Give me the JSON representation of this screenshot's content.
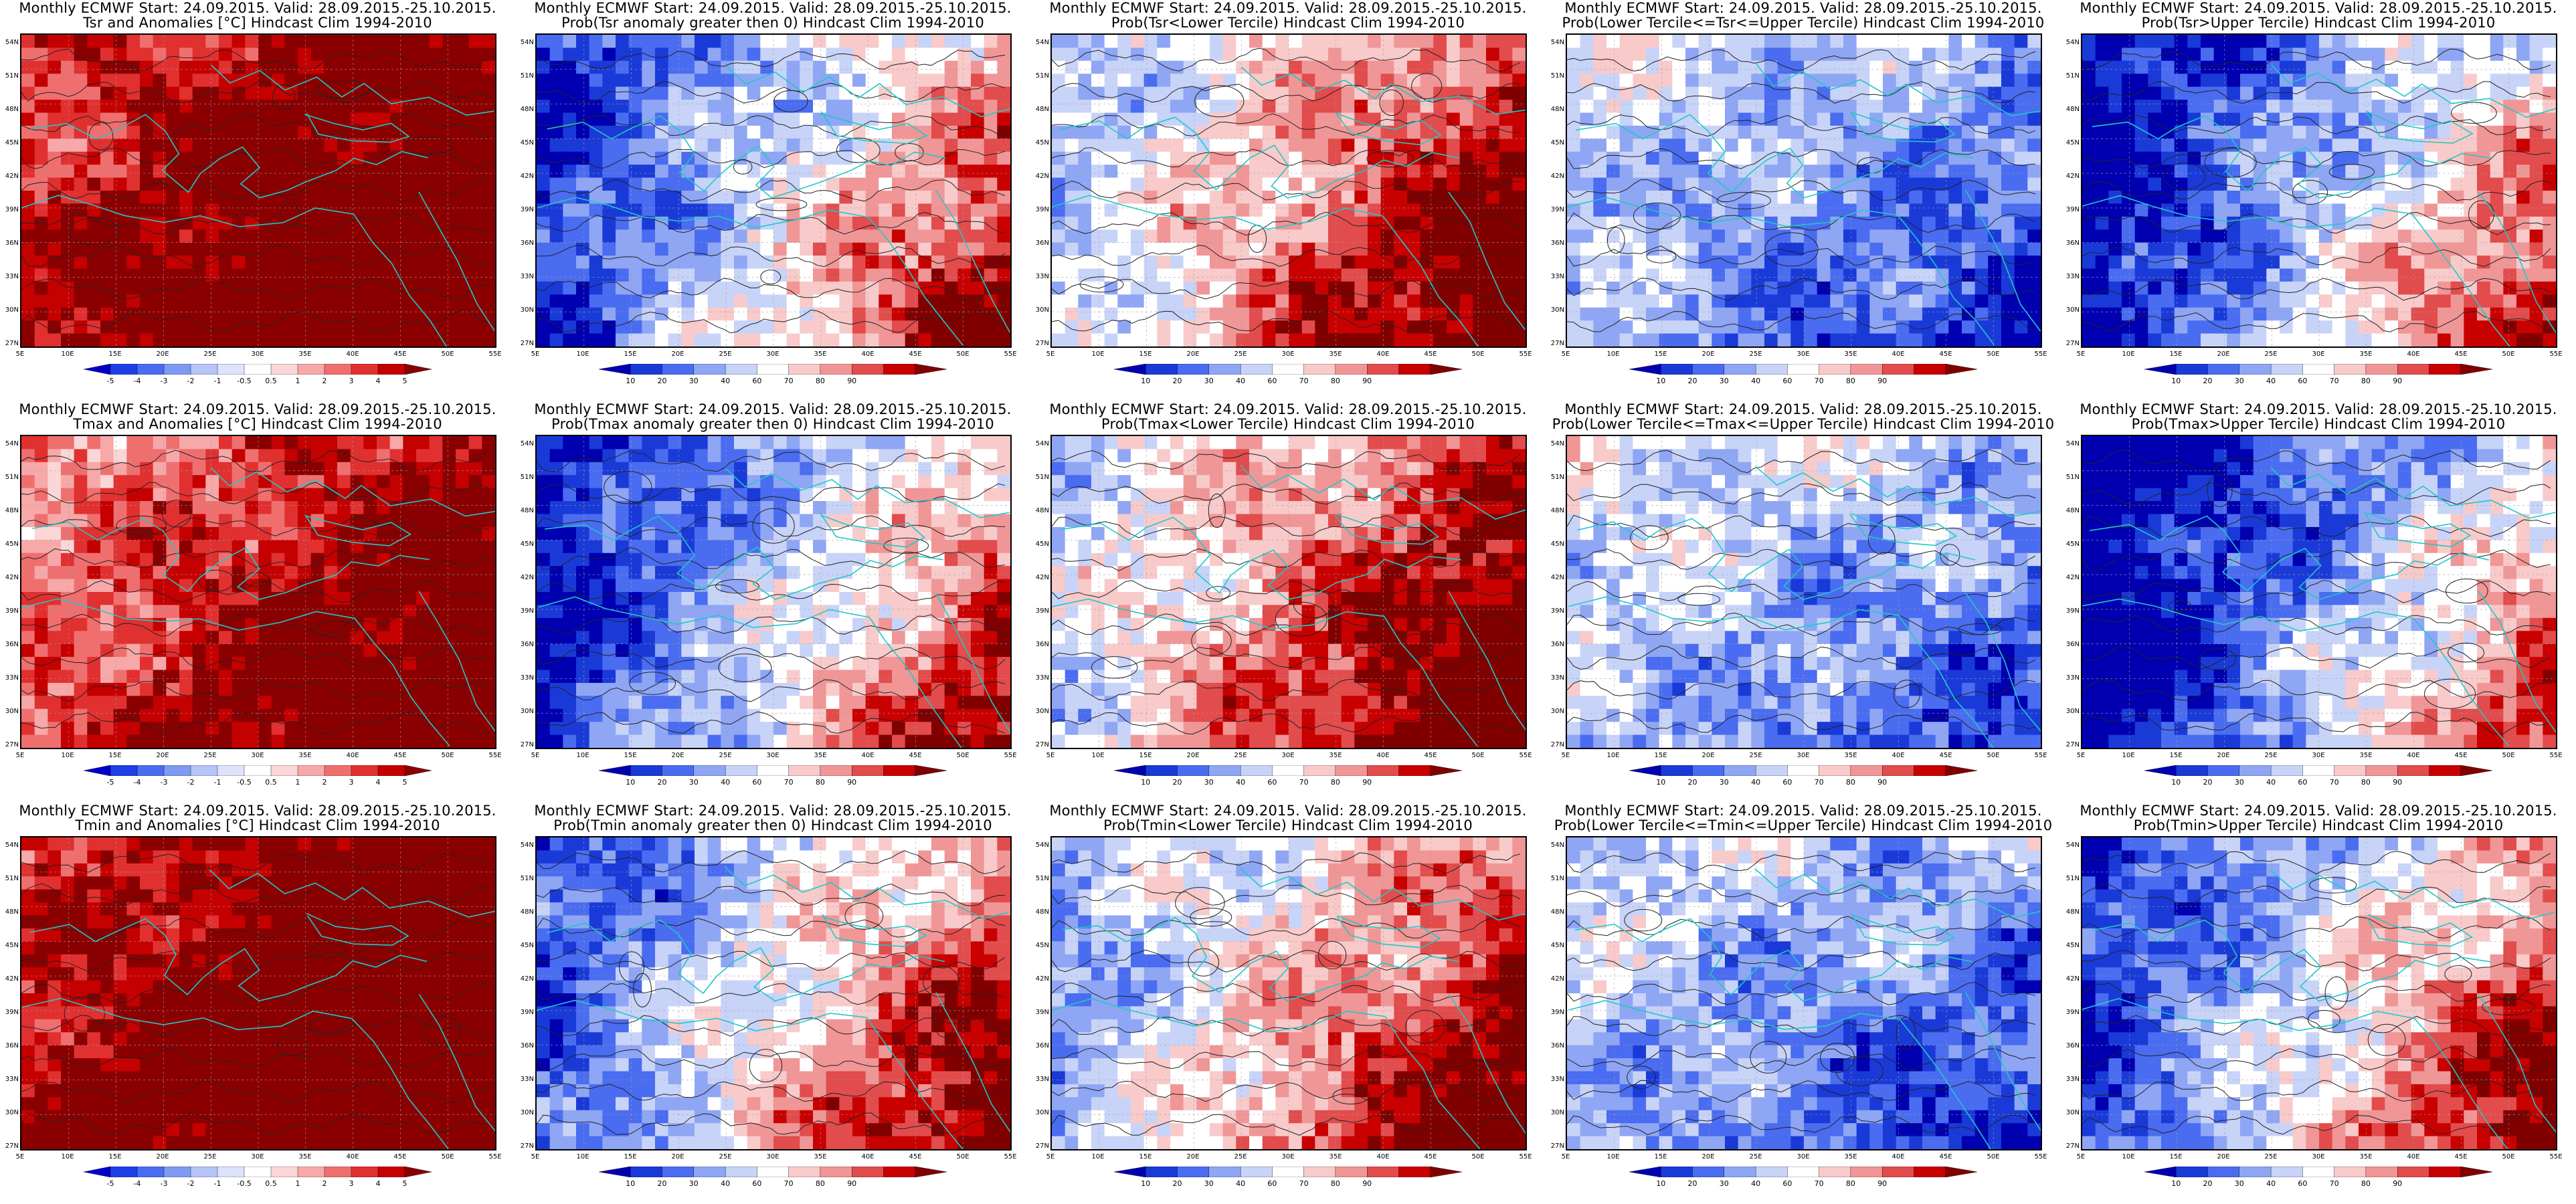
{
  "common": {
    "line1": "Monthly ECMWF Start: 24.09.2015. Valid: 28.09.2015.-25.10.2015.",
    "lat_labels": [
      "54N",
      "51N",
      "48N",
      "45N",
      "42N",
      "39N",
      "36N",
      "33N",
      "30N",
      "27N"
    ],
    "lon_labels": [
      "5E",
      "10E",
      "15E",
      "20E",
      "25E",
      "30E",
      "35E",
      "40E",
      "45E",
      "50E",
      "55E"
    ]
  },
  "colorbars": {
    "anomaly": {
      "colors": [
        "#0000c8",
        "#1f3fe6",
        "#4a6cf0",
        "#7f9af2",
        "#b6c4f7",
        "#dde3fa",
        "#ffffff",
        "#fbd6d6",
        "#f7a8a8",
        "#ef6f6f",
        "#e13030",
        "#c40000",
        "#8a0000"
      ],
      "ticks": [
        "-5",
        "-4",
        "-3",
        "-2",
        "-1",
        "-0.5",
        "0.5",
        "1",
        "2",
        "3",
        "4",
        "5"
      ]
    },
    "prob": {
      "colors": [
        "#0000b0",
        "#1a3ad8",
        "#4a6cf0",
        "#8ea6f4",
        "#c8d3f8",
        "#ffffff",
        "#f8caca",
        "#f09696",
        "#e24c4c",
        "#c80000",
        "#800000"
      ],
      "ticks": [
        "10",
        "20",
        "30",
        "40",
        "60",
        "70",
        "80",
        "90"
      ]
    }
  },
  "panels": [
    {
      "id": "tsr-anom",
      "line2": "Tsr and Anomalies [°C] Hindcast Clim 1994-2010",
      "cbar": "anomaly",
      "field": "anom",
      "bias": 0.8
    },
    {
      "id": "tsr-prob-pos",
      "line2": "Prob(Tsr anomaly greater then 0) Hindcast Clim 1994-2010",
      "cbar": "prob",
      "field": "warm",
      "bias": 0.0
    },
    {
      "id": "tsr-prob-lower",
      "line2": "Prob(Tsr<Lower Tercile) Hindcast Clim 1994-2010",
      "cbar": "prob",
      "field": "cold",
      "bias": 0.0
    },
    {
      "id": "tsr-prob-mid",
      "line2": "Prob(Lower Tercile<=Tsr<=Upper Tercile) Hindcast Clim 1994-2010",
      "cbar": "prob",
      "field": "mid",
      "bias": 0.0
    },
    {
      "id": "tsr-prob-upper",
      "line2": "Prob(Tsr>Upper Tercile) Hindcast Clim 1994-2010",
      "cbar": "prob",
      "field": "warm",
      "bias": -0.2
    },
    {
      "id": "tmax-anom",
      "line2": "Tmax and Anomalies [°C] Hindcast Clim 1994-2010",
      "cbar": "anomaly",
      "field": "anom",
      "bias": 0.5
    },
    {
      "id": "tmax-prob-pos",
      "line2": "Prob(Tmax anomaly greater then 0) Hindcast Clim 1994-2010",
      "cbar": "prob",
      "field": "warm",
      "bias": -0.1
    },
    {
      "id": "tmax-prob-lower",
      "line2": "Prob(Tmax<Lower Tercile) Hindcast Clim 1994-2010",
      "cbar": "prob",
      "field": "cold",
      "bias": -0.1
    },
    {
      "id": "tmax-prob-mid",
      "line2": "Prob(Lower Tercile<=Tmax<=Upper Tercile) Hindcast Clim 1994-2010",
      "cbar": "prob",
      "field": "mid",
      "bias": 0.1
    },
    {
      "id": "tmax-prob-upper",
      "line2": "Prob(Tmax>Upper Tercile) Hindcast Clim 1994-2010",
      "cbar": "prob",
      "field": "warm",
      "bias": -0.35
    },
    {
      "id": "tmin-anom",
      "line2": "Tmin and Anomalies [°C] Hindcast Clim 1994-2010",
      "cbar": "anomaly",
      "field": "anom",
      "bias": 0.9
    },
    {
      "id": "tmin-prob-pos",
      "line2": "Prob(Tmin anomaly greater then 0) Hindcast Clim 1994-2010",
      "cbar": "prob",
      "field": "warm",
      "bias": 0.15
    },
    {
      "id": "tmin-prob-lower",
      "line2": "Prob(Tmin<Lower Tercile) Hindcast Clim 1994-2010",
      "cbar": "prob",
      "field": "cold",
      "bias": 0.15
    },
    {
      "id": "tmin-prob-mid",
      "line2": "Prob(Lower Tercile<=Tmin<=Upper Tercile) Hindcast Clim 1994-2010",
      "cbar": "prob",
      "field": "mid",
      "bias": 0.0
    },
    {
      "id": "tmin-prob-upper",
      "line2": "Prob(Tmin>Upper Tercile) Hindcast Clim 1994-2010",
      "cbar": "prob",
      "field": "warm",
      "bias": 0.05
    }
  ]
}
